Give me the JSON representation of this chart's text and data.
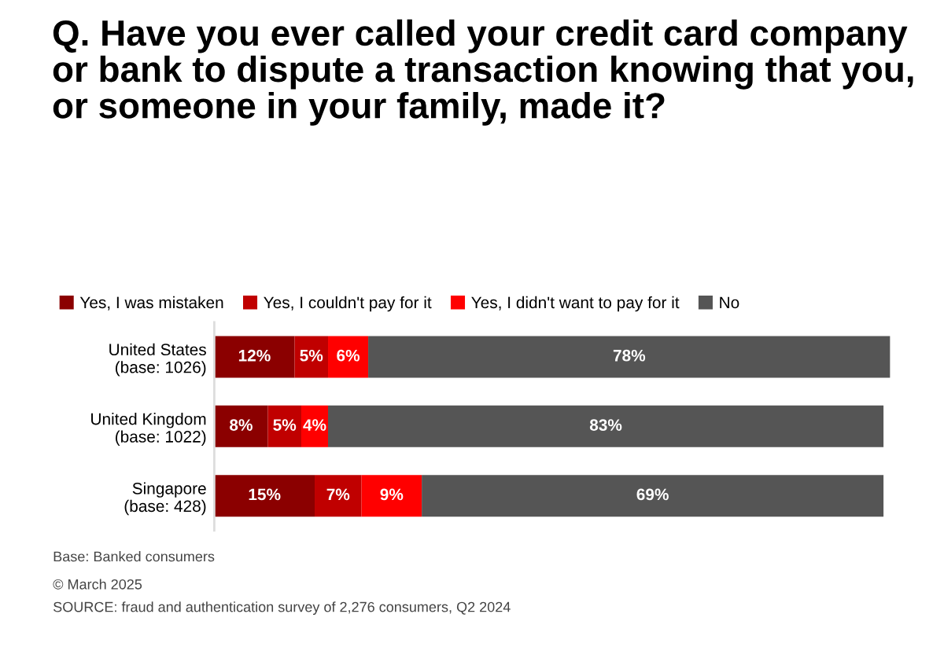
{
  "chart_data": {
    "type": "bar",
    "orientation": "horizontal",
    "stacked": true,
    "title": "Q. Have you ever called your credit card company or bank to dispute a transaction knowing that you, or someone in your family, made it?",
    "categories": [
      "United States\n(base: 1026)",
      "United Kingdom\n(base: 1022)",
      "Singapore\n(base: 428)"
    ],
    "series": [
      {
        "name": "Yes, I was mistaken",
        "color": "#8b0000",
        "values": [
          12,
          8,
          15
        ],
        "value_labels": [
          "12%",
          "8%",
          "15%"
        ]
      },
      {
        "name": "Yes, I couldn't pay for it",
        "color": "#c00000",
        "values": [
          5,
          5,
          7
        ],
        "value_labels": [
          "5%",
          "5%",
          "7%"
        ]
      },
      {
        "name": "Yes, I didn't want to pay for it",
        "color": "#ff0000",
        "values": [
          6,
          4,
          9
        ],
        "value_labels": [
          "6%",
          "4%",
          "9%"
        ]
      },
      {
        "name": "No",
        "color": "#555555",
        "values": [
          78,
          83,
          69
        ],
        "value_labels": [
          "78%",
          "83%",
          "69%"
        ]
      }
    ],
    "legend": "top left",
    "grid": false,
    "tick_labels": "y",
    "annotations": [
      "Base: Banked consumers",
      "© March 2025",
      "SOURCE: fraud and authentication survey of 2,276 consumers, Q2 2024"
    ]
  }
}
